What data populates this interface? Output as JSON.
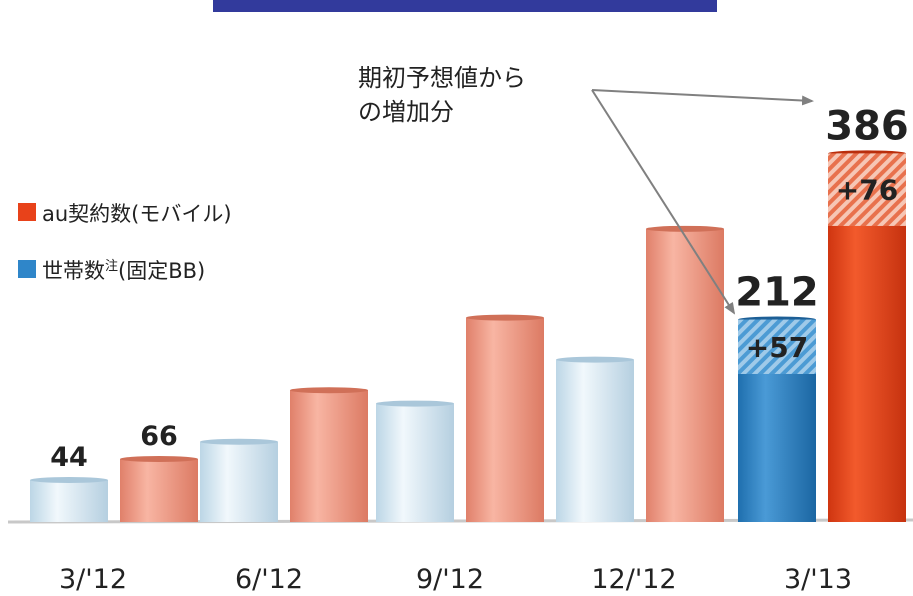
{
  "chart_data": {
    "type": "bar",
    "categories": [
      "3/'12",
      "6/'12",
      "9/'12",
      "12/'12",
      "3/'13"
    ],
    "series": [
      {
        "name": "世帯数注(固定BB)",
        "values": [
          44,
          84,
          124,
          170,
          212
        ]
      },
      {
        "name": "au契約数(モバイル)",
        "values": [
          66,
          138,
          214,
          307,
          386
        ]
      }
    ],
    "increase_over_initial_forecast": [
      {
        "category": "3/'13",
        "series": "世帯数注(固定BB)",
        "value": 57,
        "label": "+57"
      },
      {
        "category": "3/'13",
        "series": "au契約数(モバイル)",
        "value": 76,
        "label": "+76"
      }
    ],
    "data_labels": [
      {
        "category": "3/'12",
        "series": 0,
        "text": "44"
      },
      {
        "category": "3/'12",
        "series": 1,
        "text": "66"
      },
      {
        "category": "3/'13",
        "series": 0,
        "text": "212"
      },
      {
        "category": "3/'13",
        "series": 1,
        "text": "386"
      }
    ],
    "annotation": {
      "line1": "期初予想値から",
      "line2": "の増加分"
    },
    "legend": {
      "placement": "left",
      "items": [
        {
          "label": "au契約数(モバイル)",
          "color": "#e8421a"
        },
        {
          "label": "世帯数",
          "sup": "注",
          "suffix": "(固定BB)",
          "color": "#2f86c9"
        }
      ]
    },
    "colors": {
      "fixed_bb": "#dcedf6",
      "mobile": "#f19b84",
      "fixed_bb_highlight": "#2f86c9",
      "mobile_highlight": "#e8421a",
      "title_bar": "#323a9c"
    }
  }
}
